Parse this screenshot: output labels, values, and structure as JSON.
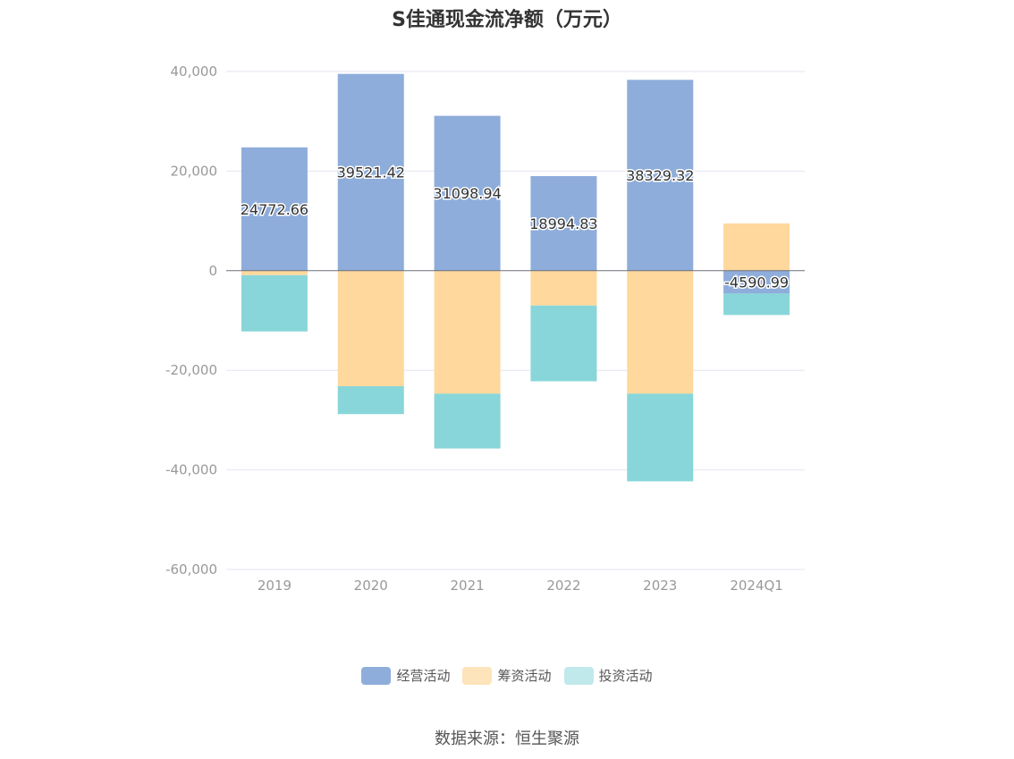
{
  "chart_data": {
    "type": "bar",
    "stacked": true,
    "title": "S佳通现金流净额（万元）",
    "categories": [
      "2019",
      "2020",
      "2021",
      "2022",
      "2023",
      "2024Q1"
    ],
    "series": [
      {
        "name": "经营活动",
        "color": "#8eaddb",
        "values": [
          24772.66,
          39521.42,
          31098.94,
          18994.83,
          38329.32,
          -4590.99
        ],
        "labels": [
          "24772.66",
          "39521.42",
          "31098.94",
          "18994.83",
          "38329.32",
          "-4590.99"
        ]
      },
      {
        "name": "筹资活动",
        "color": "#fed89d",
        "values": [
          -900,
          -23200,
          -24700,
          -7000,
          -24700,
          9500
        ]
      },
      {
        "name": "投资活动",
        "color": "#88d6d9",
        "values": [
          -11300,
          -5600,
          -11000,
          -15200,
          -17600,
          -4300
        ]
      }
    ],
    "ylim": [
      -60000,
      40000
    ],
    "yticks": [
      40000,
      20000,
      0,
      -20000,
      -40000,
      -60000
    ],
    "ytick_labels": [
      "40,000",
      "20,000",
      "0",
      "-20,000",
      "-40,000",
      "-60,000"
    ],
    "grid": true,
    "legend_position": "bottom"
  },
  "source": "数据来源：恒生聚源"
}
